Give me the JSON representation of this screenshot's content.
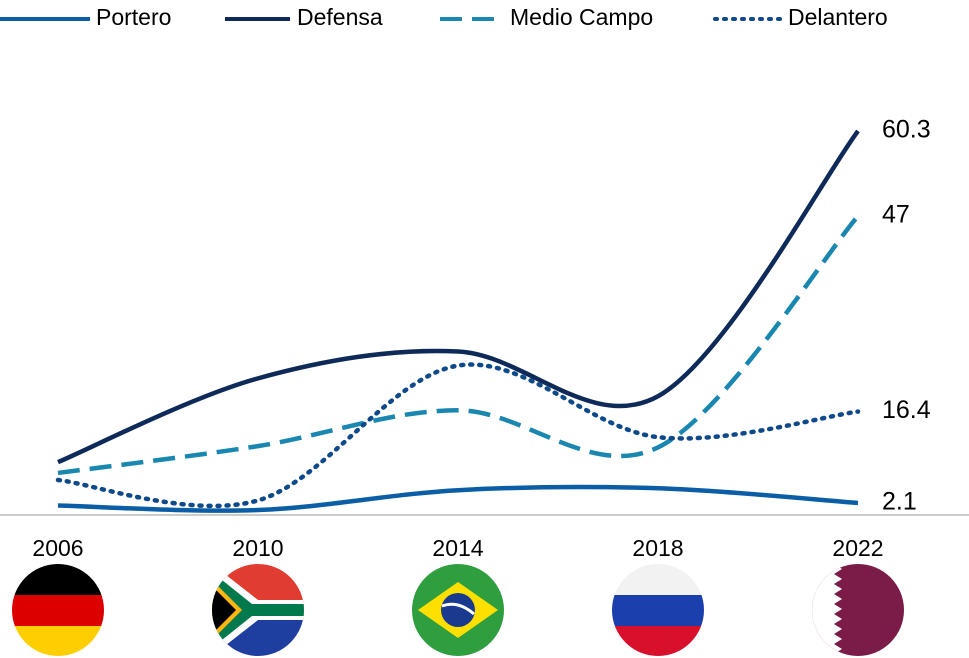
{
  "chart_data": {
    "type": "line",
    "categories": [
      "2006",
      "2010",
      "2014",
      "2018",
      "2022"
    ],
    "series": [
      {
        "name": "Portero",
        "color": "#0b5ea6",
        "style": "solid",
        "values": [
          1.7,
          1.0,
          4.1,
          4.4,
          2.1
        ]
      },
      {
        "name": "Defensa",
        "color": "#0d2a58",
        "style": "solid",
        "values": [
          8.5,
          21.6,
          25.8,
          18.8,
          60.3
        ]
      },
      {
        "name": "Medio Campo",
        "color": "#1987b0",
        "style": "dashed",
        "values": [
          6.8,
          11.0,
          16.6,
          10.8,
          47
        ]
      },
      {
        "name": "Delantero",
        "color": "#0e4a8a",
        "style": "dotted",
        "values": [
          5.7,
          2.5,
          23.6,
          12.4,
          16.4
        ]
      }
    ],
    "ylim": [
      0,
      65
    ],
    "legend": "top"
  }
}
